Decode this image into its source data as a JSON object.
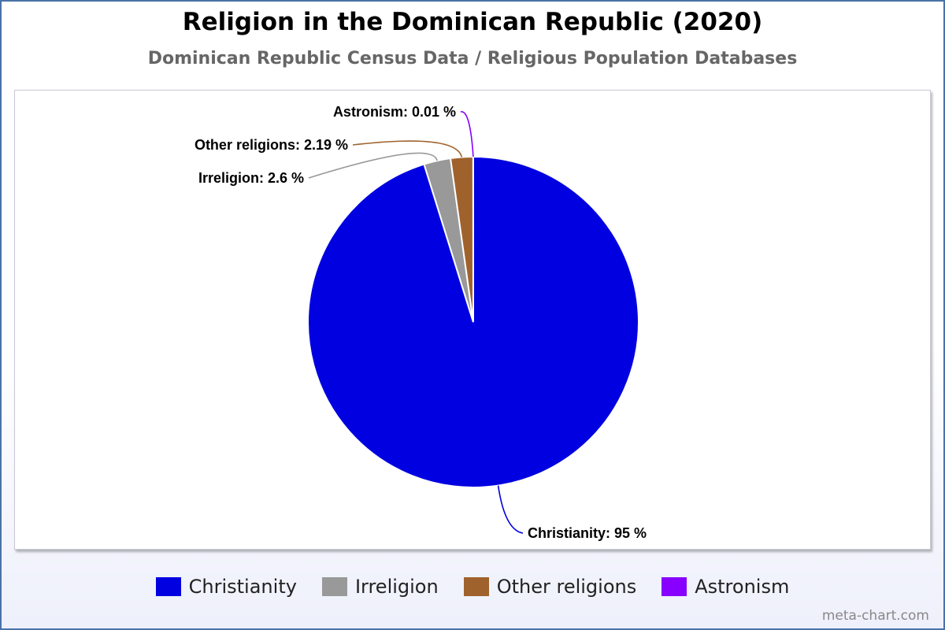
{
  "chart_data": {
    "type": "pie",
    "title": "Religion in the Dominican Republic (2020)",
    "subtitle": "Dominican Republic Census Data / Religious Population Databases",
    "slices": [
      {
        "label": "Christianity",
        "value": 95,
        "data_label": "Christianity: 95 %",
        "color": "#0000e0"
      },
      {
        "label": "Irreligion",
        "value": 2.6,
        "data_label": "Irreligion: 2.6 %",
        "color": "#999999"
      },
      {
        "label": "Other religions",
        "value": 2.19,
        "data_label": "Other religions: 2.19 %",
        "color": "#a0622d"
      },
      {
        "label": "Astronism",
        "value": 0.01,
        "data_label": "Astronism: 0.01 %",
        "color": "#8800ff"
      }
    ],
    "legend_position": "bottom"
  },
  "credit": "meta-chart.com"
}
